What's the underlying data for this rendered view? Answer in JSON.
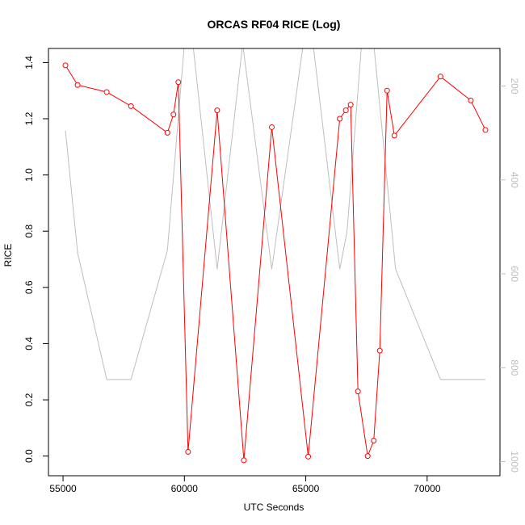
{
  "chart_data": {
    "type": "line",
    "title": "ORCAS RF04 RICE (Log)",
    "xlabel": "UTC Seconds",
    "ylabel": "RICE",
    "y2label": "",
    "xlim": [
      54400,
      73000
    ],
    "ylim": [
      -0.07,
      1.45
    ],
    "y2lim": [
      120,
      1030
    ],
    "y2_reversed": true,
    "x_ticks": [
      55000,
      60000,
      65000,
      70000
    ],
    "x_tick_labels": [
      "55000",
      "60000",
      "65000",
      "70000"
    ],
    "y_ticks": [
      0.0,
      0.2,
      0.4,
      0.6,
      0.8,
      1.0,
      1.2,
      1.4
    ],
    "y_tick_labels": [
      "0.0",
      "0.2",
      "0.4",
      "0.6",
      "0.8",
      "1.0",
      "1.2",
      "1.4"
    ],
    "y2_ticks": [
      200,
      400,
      600,
      800,
      1000
    ],
    "y2_tick_labels": [
      "200",
      "400",
      "600",
      "800",
      "1000"
    ],
    "grid": false,
    "legend": false,
    "series": [
      {
        "color": "#ff0000",
        "style": "line+circles",
        "axis": "left",
        "x": [
          55100,
          55600,
          56800,
          57800,
          59300,
          59550,
          59750,
          60150,
          61350,
          62450,
          63600,
          65100,
          66400,
          66650,
          66850,
          67150,
          67550,
          67800,
          68050,
          68350,
          68650,
          70550,
          71800,
          72400
        ],
        "y": [
          1.39,
          1.32,
          1.295,
          1.245,
          1.15,
          1.215,
          1.33,
          0.015,
          1.23,
          -0.015,
          1.17,
          -0.002,
          1.2,
          1.23,
          1.25,
          0.23,
          0.0,
          0.055,
          0.375,
          1.3,
          1.14,
          1.35,
          1.265,
          1.16
        ]
      },
      {
        "color": "#bebebe",
        "style": "line",
        "axis": "right",
        "x": [
          55100,
          55600,
          56800,
          57800,
          59300,
          60000,
          60350,
          61350,
          62400,
          63600,
          64900,
          65300,
          66400,
          66700,
          67300,
          67800,
          68700,
          70550,
          72400
        ],
        "y": [
          295,
          555,
          825,
          825,
          550,
          110,
          110,
          590,
          110,
          590,
          110,
          110,
          590,
          510,
          110,
          110,
          590,
          825,
          825
        ]
      }
    ]
  }
}
